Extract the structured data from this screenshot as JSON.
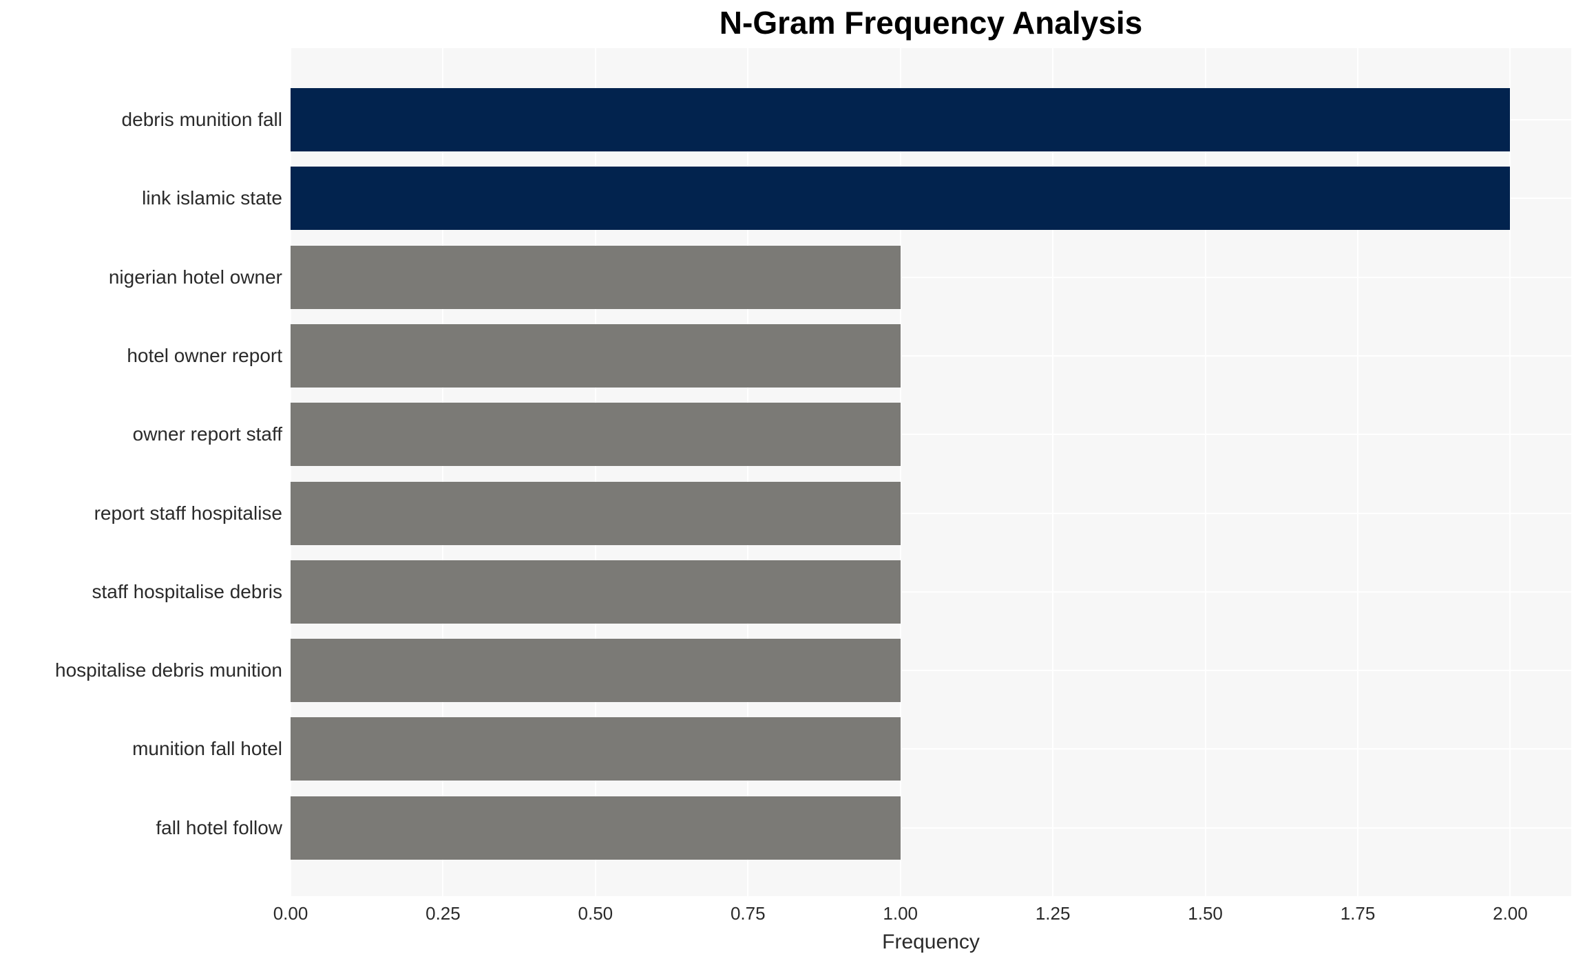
{
  "chart_data": {
    "type": "bar",
    "orientation": "horizontal",
    "title": "N-Gram Frequency Analysis",
    "xlabel": "Frequency",
    "ylabel": "",
    "categories": [
      "debris munition fall",
      "link islamic state",
      "nigerian hotel owner",
      "hotel owner report",
      "owner report staff",
      "report staff hospitalise",
      "staff hospitalise debris",
      "hospitalise debris munition",
      "munition fall hotel",
      "fall hotel follow"
    ],
    "values": [
      2,
      2,
      1,
      1,
      1,
      1,
      1,
      1,
      1,
      1
    ],
    "bar_colors": [
      "#02234e",
      "#02234e",
      "#7b7a76",
      "#7b7a76",
      "#7b7a76",
      "#7b7a76",
      "#7b7a76",
      "#7b7a76",
      "#7b7a76",
      "#7b7a76"
    ],
    "xlim": [
      0,
      2.1
    ],
    "x_ticks": [
      0,
      0.25,
      0.5,
      0.75,
      1.0,
      1.25,
      1.5,
      1.75,
      2.0
    ],
    "x_tick_labels": [
      "0.00",
      "0.25",
      "0.50",
      "0.75",
      "1.00",
      "1.25",
      "1.50",
      "1.75",
      "2.00"
    ],
    "grid": true,
    "legend": false,
    "colors": {
      "highlight": "#02234e",
      "default": "#7b7a76",
      "plot_background": "#f7f7f7",
      "gridline": "#ffffff",
      "text": "#2a2a2a"
    }
  }
}
